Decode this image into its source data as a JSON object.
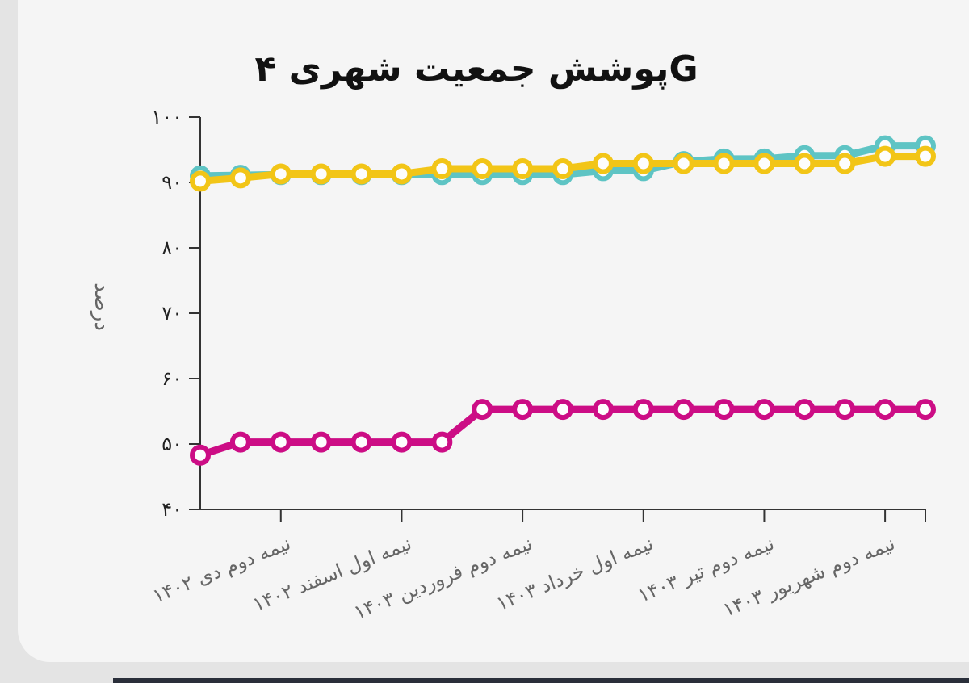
{
  "chart_data": {
    "type": "line",
    "title": "پوشش جمعیت شهری ۴G",
    "ylabel": "درصد",
    "xlabel": "",
    "ylim": [
      40,
      100
    ],
    "yticks": [
      "۴۰",
      "۵۰",
      "۶۰",
      "۷۰",
      "۸۰",
      "۹۰",
      "۱۰۰"
    ],
    "x_tick_labels": [
      "نیمه دوم دی ۱۴۰۲",
      "نیمه اول اسفند ۱۴۰۲",
      "نیمه دوم فروردین ۱۴۰۳",
      "نیمه اول خرداد ۱۴۰۳",
      "نیمه دوم تیر ۱۴۰۳",
      "نیمه دوم شهریور ۱۴۰۳"
    ],
    "x_tick_positions": [
      2,
      5,
      8,
      11,
      14,
      17
    ],
    "grid": false,
    "legend": "none",
    "points_count": 19,
    "series": [
      {
        "color": "#5ec4c4",
        "values": [
          91.0,
          91.1,
          91.2,
          91.2,
          91.2,
          91.2,
          91.2,
          91.2,
          91.2,
          91.2,
          91.8,
          91.8,
          93.2,
          93.6,
          93.6,
          94.1,
          94.1,
          95.6,
          95.6
        ]
      },
      {
        "color": "#f2c517",
        "values": [
          90.2,
          90.7,
          91.3,
          91.3,
          91.3,
          91.3,
          92.1,
          92.1,
          92.1,
          92.1,
          92.9,
          92.9,
          92.9,
          92.9,
          92.9,
          92.9,
          92.9,
          94.0,
          94.0
        ]
      },
      {
        "color": "#cc0d85",
        "values": [
          48.3,
          50.3,
          50.3,
          50.3,
          50.3,
          50.3,
          50.3,
          55.3,
          55.3,
          55.3,
          55.3,
          55.3,
          55.3,
          55.3,
          55.3,
          55.3,
          55.3,
          55.3,
          55.3
        ]
      }
    ]
  }
}
